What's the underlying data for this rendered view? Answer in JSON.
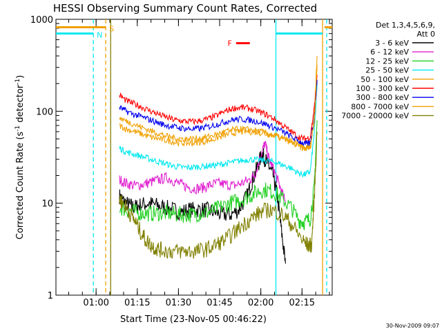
{
  "chart_data": {
    "type": "line",
    "title": "HESSI Observing Summary Count Rates, Corrected",
    "xlabel": "Start Time (23-Nov-05 00:46:22)",
    "ylabel": "Corrected Count Rate (s⁻¹ detector⁻¹)",
    "ylabel_parts": {
      "main": "Corrected Count Rate (s",
      "sup1": "-1",
      "mid": " detector",
      "sup2": "-1",
      "end": ")"
    },
    "timestamp": "30-Nov-2009 09:07",
    "y_scale": "log",
    "ylim": [
      1,
      1000
    ],
    "xlim_minutes": [
      46.37,
      147.0
    ],
    "y_ticks": [
      {
        "v": 1,
        "label": "1"
      },
      {
        "v": 10,
        "label": "10"
      },
      {
        "v": 100,
        "label": "100"
      },
      {
        "v": 1000,
        "label": "1000"
      }
    ],
    "x_ticks": [
      {
        "t": 61,
        "label": "01:00"
      },
      {
        "t": 76,
        "label": "01:15"
      },
      {
        "t": 91,
        "label": "01:30"
      },
      {
        "t": 106,
        "label": "01:45"
      },
      {
        "t": 121,
        "label": "02:00"
      },
      {
        "t": 136,
        "label": "02:15"
      }
    ],
    "legend": {
      "title_line1": "Det 1,3,4,5,6,9,",
      "title_line2": "Att 0",
      "position": "right"
    },
    "series": [
      {
        "name": "3 - 6 keV",
        "color": "#000000",
        "x": [
          69.5,
          71,
          73,
          75,
          77,
          80,
          83,
          86,
          89,
          92,
          95,
          98,
          101,
          104,
          107,
          110,
          113,
          116,
          118,
          120,
          121.5,
          122.5,
          124,
          125.5,
          127,
          128.5,
          130
        ],
        "y": [
          12,
          10.5,
          9.5,
          9,
          9.5,
          10,
          9.5,
          9,
          8.5,
          8,
          8.5,
          8.5,
          8.5,
          8,
          7.5,
          7.5,
          8.5,
          12,
          18,
          26,
          35,
          30,
          25,
          20,
          12,
          5,
          2.2
        ]
      },
      {
        "name": "6 - 12 keV",
        "color": "#e020d0",
        "x": [
          69.5,
          72,
          75,
          78,
          81,
          84,
          87,
          90,
          93,
          96,
          99,
          102,
          105,
          108,
          111,
          114,
          117,
          119,
          121,
          122.5,
          124,
          126,
          128,
          130
        ],
        "y": [
          18,
          16.5,
          15.5,
          16,
          17,
          18,
          19,
          17,
          15.5,
          14.5,
          14.5,
          15.5,
          16.5,
          16,
          15.5,
          16.5,
          18,
          21,
          33,
          45,
          30,
          22,
          15,
          10
        ]
      },
      {
        "name": "12 - 25 keV",
        "color": "#20d020",
        "x": [
          69.5,
          72,
          75,
          78,
          81,
          84,
          87,
          90,
          93,
          96,
          99,
          102,
          105,
          108,
          111,
          114,
          117,
          120,
          123,
          126,
          129,
          132,
          135,
          137,
          139,
          140.5,
          141.5
        ],
        "y": [
          9,
          8.5,
          8,
          7.8,
          7.7,
          7.8,
          7.8,
          7.6,
          7.5,
          7.5,
          7.7,
          8,
          8.7,
          9.5,
          10.3,
          11,
          12,
          13.5,
          14,
          13,
          11,
          9,
          6.5,
          6.2,
          6.8,
          15,
          80
        ]
      },
      {
        "name": "25 - 50 keV",
        "color": "#00e8f0",
        "x": [
          69.5,
          72,
          75,
          78,
          81,
          84,
          87,
          90,
          93,
          96,
          99,
          102,
          105,
          108,
          111,
          114,
          117,
          120,
          123,
          126,
          129,
          132,
          135,
          137,
          139,
          140.5,
          141.5
        ],
        "y": [
          40,
          36,
          34,
          32,
          30,
          28,
          26.5,
          25,
          24.5,
          24.5,
          25,
          25.5,
          26,
          27,
          28,
          29,
          30,
          29.5,
          29,
          28,
          26,
          24,
          21,
          20.5,
          22,
          60,
          200
        ]
      },
      {
        "name": "50 - 100 keV",
        "color": "#f0a000",
        "x": [
          69.5,
          72,
          75,
          78,
          81,
          84,
          87,
          90,
          93,
          96,
          99,
          102,
          105,
          108,
          111,
          114,
          117,
          120,
          123,
          126,
          129,
          132,
          135,
          137,
          139,
          140.5,
          141.5
        ],
        "y": [
          70,
          64,
          60,
          56,
          52,
          50,
          48,
          46,
          45,
          45,
          46,
          48,
          51,
          55,
          58,
          60,
          60,
          59,
          57,
          55,
          52,
          48,
          43,
          41,
          42,
          90,
          400
        ]
      },
      {
        "name": "100 - 300 keV",
        "color": "#ff0000",
        "x": [
          69.5,
          72,
          75,
          78,
          81,
          84,
          87,
          90,
          93,
          96,
          99,
          102,
          105,
          108,
          111,
          114,
          117,
          120,
          123,
          126,
          129,
          132,
          135,
          137,
          139,
          140.5,
          141.5
        ],
        "y": [
          150,
          130,
          120,
          110,
          100,
          92,
          85,
          80,
          78,
          77,
          79,
          83,
          90,
          100,
          108,
          110,
          107,
          100,
          92,
          82,
          70,
          60,
          52,
          50,
          52,
          110,
          250
        ]
      },
      {
        "name": "300 - 800 keV",
        "color": "#0000ee",
        "x": [
          69.5,
          72,
          75,
          78,
          81,
          84,
          87,
          90,
          93,
          96,
          99,
          102,
          105,
          108,
          111,
          114,
          117,
          120,
          123,
          126,
          129,
          132,
          135,
          137,
          139,
          140.5,
          141.5
        ],
        "y": [
          110,
          100,
          92,
          86,
          80,
          74,
          70,
          67,
          65,
          64,
          65,
          68,
          72,
          77,
          81,
          82,
          80,
          77,
          72,
          66,
          60,
          53,
          47,
          44,
          45,
          85,
          220
        ]
      },
      {
        "name": "800 - 7000 keV",
        "color": "#f0a000",
        "x": [
          69.5,
          72,
          75,
          78,
          81,
          84,
          87,
          90,
          93,
          96,
          99,
          102,
          105,
          108,
          111,
          114,
          117,
          120,
          123,
          126,
          129,
          132,
          135,
          137,
          139,
          140.5,
          141.5
        ],
        "y": [
          85,
          78,
          72,
          66,
          61,
          57,
          53,
          51,
          50,
          50,
          51,
          53,
          56,
          60,
          63,
          64,
          63,
          61,
          58,
          54,
          50,
          46,
          41,
          39,
          40,
          80,
          320
        ]
      },
      {
        "name": "7000 - 20000 keV",
        "color": "#808000",
        "x": [
          69.5,
          71,
          73,
          75,
          77,
          79,
          81,
          83,
          85,
          88,
          91,
          94,
          97,
          100,
          103,
          106,
          109,
          112,
          115,
          118,
          121,
          124,
          127,
          130,
          133,
          136,
          138,
          139.5,
          140.5,
          141.5
        ],
        "y": [
          11,
          10,
          8,
          6.5,
          5,
          4,
          3.5,
          3.2,
          3.1,
          3,
          3,
          3,
          3,
          3.1,
          3.3,
          3.7,
          4.2,
          5,
          6,
          7,
          8,
          8.5,
          8,
          7,
          5.5,
          4,
          3.5,
          3.5,
          12,
          60
        ]
      }
    ],
    "annotations": [
      {
        "label": "N",
        "color": "#00e8f0",
        "x0": 46.37,
        "x1": 60,
        "y": 700
      },
      {
        "label": "S",
        "color": "#f0a000",
        "x0": 46.37,
        "x1": 64.5,
        "y": 820
      },
      {
        "label": "F",
        "color": "#ff0000",
        "x0": 112,
        "x1": 117,
        "y": 550
      }
    ]
  }
}
